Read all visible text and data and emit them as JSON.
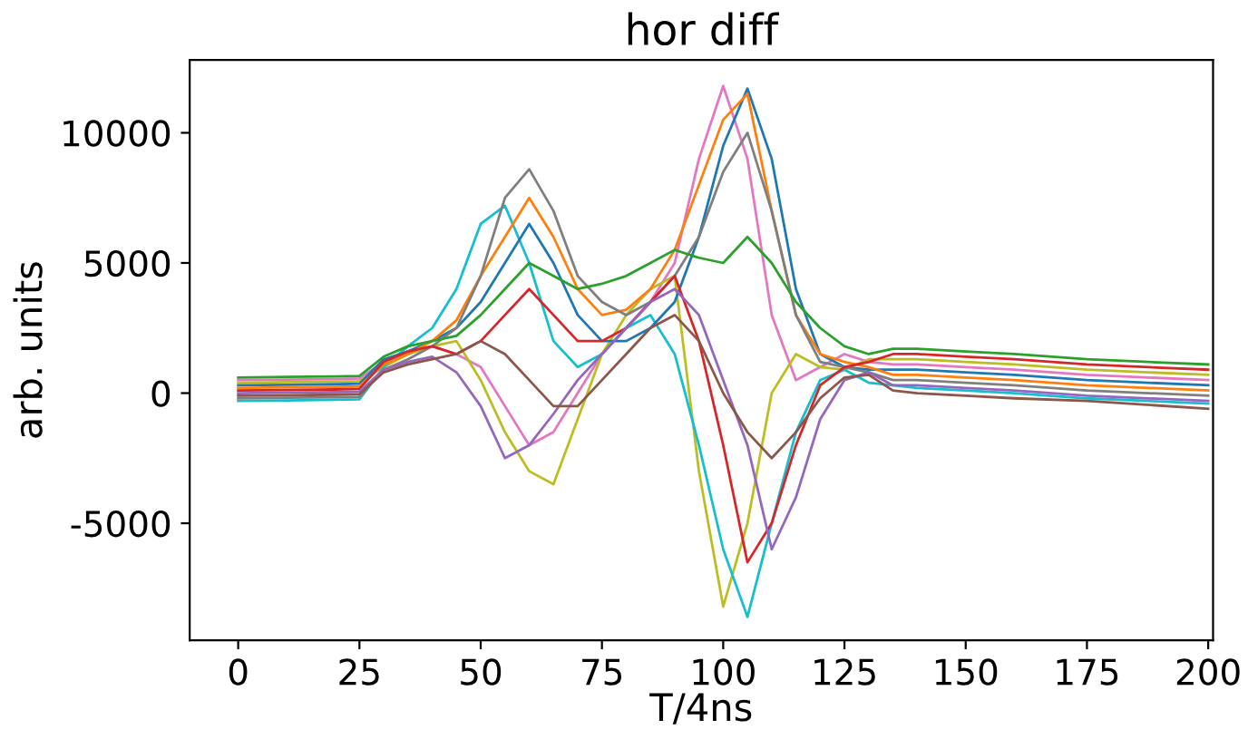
{
  "chart_data": {
    "type": "line",
    "title": "hor diff",
    "xlabel": "T/4ns",
    "ylabel": "arb. units",
    "x": [
      0,
      10,
      20,
      25,
      30,
      35,
      40,
      45,
      50,
      55,
      60,
      65,
      70,
      75,
      80,
      85,
      90,
      95,
      100,
      105,
      110,
      115,
      120,
      125,
      130,
      135,
      140,
      150,
      160,
      175,
      200
    ],
    "xlim": [
      -10,
      201
    ],
    "ylim": [
      -9500,
      12800
    ],
    "xticks": [
      0,
      25,
      50,
      75,
      100,
      125,
      150,
      175,
      200
    ],
    "yticks": [
      -5000,
      0,
      5000,
      10000
    ],
    "grid": false,
    "marker": "none",
    "line_style": "solid",
    "series": [
      {
        "color": "#e377c2",
        "values": [
          500,
          520,
          540,
          560,
          1200,
          1500,
          1800,
          1500,
          1000,
          -500,
          -2000,
          -1500,
          0,
          1500,
          2500,
          3500,
          5000,
          9000,
          11800,
          9000,
          3000,
          500,
          1000,
          1500,
          1200,
          1100,
          1100,
          1000,
          900,
          700,
          500
        ]
      },
      {
        "color": "#bcbd22",
        "values": [
          400,
          420,
          440,
          460,
          1000,
          1500,
          1800,
          2000,
          500,
          -1500,
          -3000,
          -3500,
          -1000,
          1500,
          3000,
          4000,
          4500,
          -3000,
          -8200,
          -5000,
          0,
          1500,
          1000,
          900,
          1300,
          1300,
          1300,
          1200,
          1100,
          900,
          700
        ]
      },
      {
        "color": "#17becf",
        "values": [
          -300,
          -280,
          -260,
          -240,
          1000,
          1800,
          2500,
          4000,
          6500,
          7200,
          5000,
          2000,
          1000,
          1500,
          2500,
          3000,
          1500,
          -2000,
          -6000,
          -8600,
          -5000,
          -1500,
          500,
          900,
          400,
          300,
          200,
          100,
          0,
          -200,
          -400
        ]
      },
      {
        "color": "#1f77b4",
        "values": [
          300,
          320,
          340,
          360,
          1300,
          1600,
          2000,
          2500,
          3500,
          5000,
          6500,
          5000,
          3000,
          2000,
          2000,
          2500,
          3500,
          6000,
          9500,
          11700,
          9000,
          4000,
          1500,
          1000,
          900,
          900,
          900,
          800,
          700,
          500,
          300
        ]
      },
      {
        "color": "#ff7f0e",
        "values": [
          200,
          220,
          240,
          260,
          1100,
          1500,
          2000,
          2800,
          4500,
          6000,
          7500,
          6000,
          4000,
          3000,
          3200,
          4000,
          5500,
          8000,
          10500,
          11500,
          7000,
          3000,
          1500,
          1200,
          1000,
          700,
          700,
          600,
          500,
          300,
          100
        ]
      },
      {
        "color": "#7f7f7f",
        "values": [
          -200,
          -180,
          -160,
          -140,
          900,
          1300,
          1800,
          2500,
          4500,
          7500,
          8600,
          7000,
          4500,
          3500,
          3000,
          3500,
          4500,
          6000,
          8500,
          10000,
          7000,
          3000,
          1200,
          1000,
          800,
          500,
          500,
          400,
          300,
          100,
          -100
        ]
      },
      {
        "color": "#d62728",
        "values": [
          100,
          120,
          140,
          160,
          1200,
          1600,
          1800,
          1500,
          2000,
          3000,
          4000,
          3000,
          2000,
          2000,
          2500,
          3500,
          4500,
          2000,
          -2000,
          -6500,
          -5000,
          -2000,
          300,
          1000,
          1200,
          1500,
          1500,
          1400,
          1300,
          1100,
          900
        ]
      },
      {
        "color": "#2ca02c",
        "values": [
          600,
          620,
          640,
          660,
          1400,
          1800,
          2000,
          2200,
          3000,
          4000,
          5000,
          4500,
          4000,
          4200,
          4500,
          5000,
          5500,
          5200,
          5000,
          6000,
          5000,
          3500,
          2500,
          1800,
          1500,
          1700,
          1700,
          1600,
          1500,
          1300,
          1100
        ]
      },
      {
        "color": "#9467bd",
        "values": [
          0,
          20,
          40,
          60,
          900,
          1200,
          1400,
          800,
          -500,
          -2500,
          -2000,
          -800,
          500,
          1500,
          2500,
          3500,
          4000,
          3000,
          500,
          -2000,
          -6000,
          -4000,
          -1000,
          500,
          800,
          300,
          300,
          200,
          100,
          -100,
          -300
        ]
      },
      {
        "color": "#8c564b",
        "values": [
          -100,
          -80,
          -60,
          -40,
          800,
          1100,
          1300,
          1500,
          2000,
          1500,
          500,
          -500,
          -500,
          500,
          1500,
          2500,
          3000,
          2000,
          0,
          -1500,
          -2500,
          -1500,
          -200,
          600,
          700,
          100,
          0,
          -100,
          -200,
          -300,
          -600
        ]
      }
    ]
  }
}
